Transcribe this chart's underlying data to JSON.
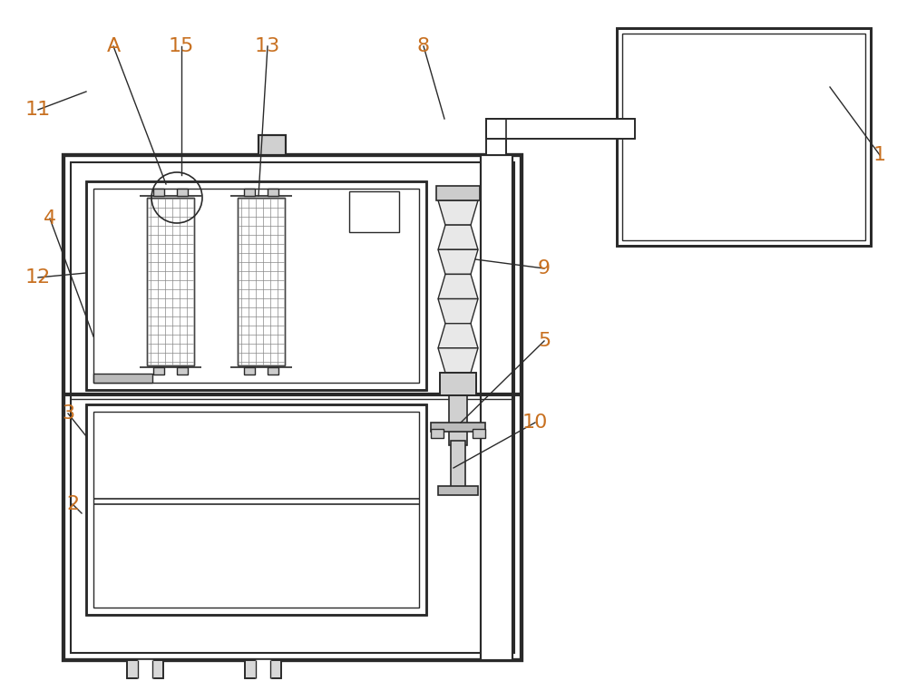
{
  "bg_color": "#ffffff",
  "line_color": "#2a2a2a",
  "label_color": "#c87020",
  "figsize": [
    10.0,
    7.51
  ],
  "dpi": 100
}
